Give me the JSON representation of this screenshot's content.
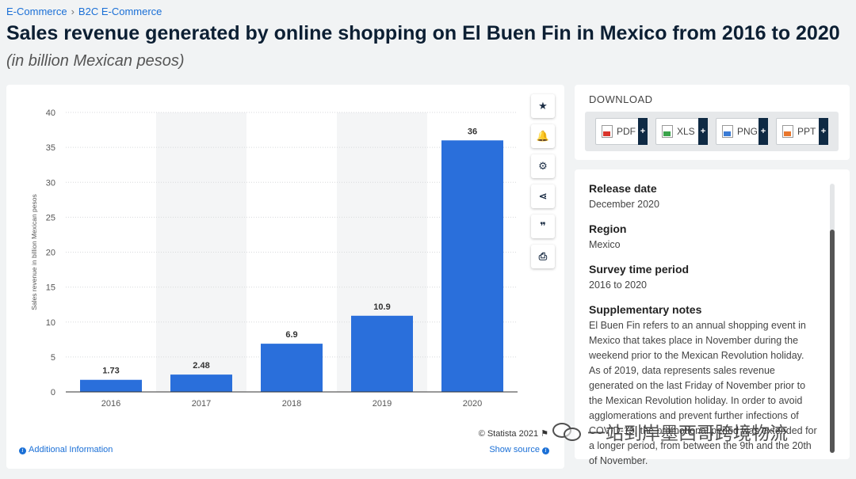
{
  "breadcrumb": {
    "item1": "E-Commerce",
    "separator": "›",
    "item2": "B2C E-Commerce"
  },
  "header": {
    "title": "Sales revenue generated by online shopping on El Buen Fin in Mexico from 2016 to 2020",
    "subtitle": "(in billion Mexican pesos)"
  },
  "chart_data": {
    "type": "bar",
    "categories": [
      "2016",
      "2017",
      "2018",
      "2019",
      "2020"
    ],
    "values": [
      1.73,
      2.48,
      6.9,
      10.9,
      36
    ],
    "value_labels": [
      "1.73",
      "2.48",
      "6.9",
      "10.9",
      "36"
    ],
    "title": "Sales revenue generated by online shopping on El Buen Fin in Mexico from 2016 to 2020",
    "xlabel": "",
    "ylabel": "Sales revenue in billion Mexican pesos",
    "ylim": [
      0,
      40
    ],
    "yticks": [
      0,
      5,
      10,
      15,
      20,
      25,
      30,
      35,
      40
    ],
    "grid": true,
    "bar_color": "#2a6fdb",
    "band_color": "#f4f5f6"
  },
  "chart_footer": {
    "copyright": "© Statista 2021",
    "additional_info": "Additional Information",
    "show_source": "Show source"
  },
  "toolbar": [
    {
      "name": "star-icon",
      "glyph": "★"
    },
    {
      "name": "bell-icon",
      "glyph": "🔔"
    },
    {
      "name": "gear-icon",
      "glyph": "⚙"
    },
    {
      "name": "share-icon",
      "glyph": "⋖"
    },
    {
      "name": "quote-icon",
      "glyph": "❞"
    },
    {
      "name": "print-icon",
      "glyph": "⎙"
    }
  ],
  "download": {
    "title": "DOWNLOAD",
    "buttons": [
      {
        "label": "PDF",
        "color": "#d9342b"
      },
      {
        "label": "XLS",
        "color": "#3aa34a"
      },
      {
        "label": "PNG",
        "color": "#3a7bd5"
      },
      {
        "label": "PPT",
        "color": "#e8762c"
      }
    ],
    "plus": "+"
  },
  "info": {
    "release_label": "Release date",
    "release_value": "December 2020",
    "region_label": "Region",
    "region_value": "Mexico",
    "survey_label": "Survey time period",
    "survey_value": "2016 to 2020",
    "notes_label": "Supplementary notes",
    "notes_value": "El Buen Fin refers to an annual shopping event in Mexico that takes place in November during the weekend prior to the Mexican Revolution holiday. As of 2019, data represents sales revenue generated on the last Friday of November prior to the Mexican Revolution holiday. In order to avoid agglomerations and prevent further infections of COVID-19, the promotional period was extended for a longer period, from between the 9th and the 20th of November."
  },
  "watermark": {
    "text": "一站到岸墨西哥跨境物流"
  }
}
